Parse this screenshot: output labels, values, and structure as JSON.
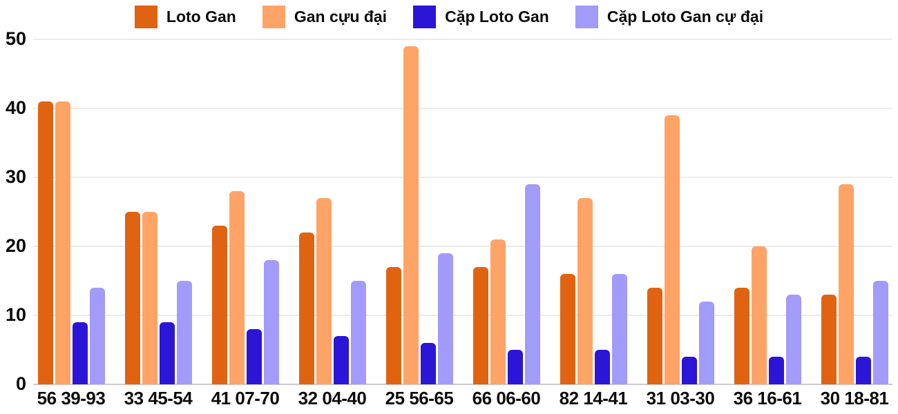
{
  "chart_data": {
    "type": "bar",
    "title": "",
    "xlabel": "",
    "ylabel": "",
    "categories": [
      "56 39-93",
      "33 45-54",
      "41 07-70",
      "32 04-40",
      "25 56-65",
      "66 06-60",
      "82 14-41",
      "31 03-30",
      "36 16-61",
      "30 18-81"
    ],
    "series": [
      {
        "name": "Loto Gan",
        "color": "#e06312",
        "values": [
          41,
          25,
          23,
          22,
          17,
          17,
          16,
          14,
          14,
          13
        ]
      },
      {
        "name": "Gan cựu đại",
        "color": "#ffa366",
        "values": [
          41,
          25,
          28,
          27,
          49,
          21,
          27,
          39,
          20,
          29
        ]
      },
      {
        "name": "Cặp Loto Gan",
        "color": "#2b15d6",
        "values": [
          9,
          9,
          8,
          7,
          6,
          5,
          5,
          4,
          4,
          4
        ]
      },
      {
        "name": "Cặp Loto Gan cự đại",
        "color": "#a29bfa",
        "values": [
          14,
          15,
          18,
          15,
          19,
          29,
          16,
          12,
          13,
          15
        ]
      }
    ],
    "y_axis": {
      "min": 0,
      "max": 50,
      "ticks": [
        0,
        10,
        20,
        30,
        40,
        50
      ]
    },
    "grid": true,
    "legend_position": "top",
    "style": {
      "background": "#ffffff",
      "grid_line_color": "#ebebeb",
      "baseline_color": "#cccccc",
      "text_color": "#0c0c0c"
    }
  }
}
